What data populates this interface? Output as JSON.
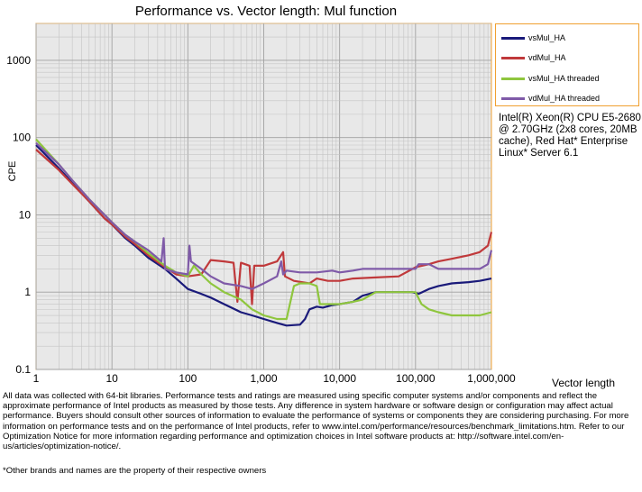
{
  "chart_data": {
    "type": "line",
    "title": "Performance vs. Vector length: Mul function",
    "xlabel": "Vector length",
    "ylabel": "CPE",
    "x_scale": "log",
    "y_scale": "log",
    "xlim": [
      1,
      1000000
    ],
    "ylim": [
      0.1,
      3000
    ],
    "x_ticks": [
      "1",
      "10",
      "100",
      "1,000",
      "10,000",
      "100,000",
      "1,000,000"
    ],
    "y_ticks": [
      "0.1",
      "1",
      "10",
      "100",
      "1000"
    ],
    "grid": true,
    "legend_position": "top-right",
    "annotation": "Intel(R) Xeon(R) CPU E5-2680 @ 2.70GHz (2x8 cores, 20MB cache), Red Hat* Enterprise Linux* Server 6.1",
    "series": [
      {
        "name": "vsMul_HA",
        "color": "#1a1a7a",
        "points": [
          [
            1,
            80
          ],
          [
            2,
            40
          ],
          [
            3,
            26
          ],
          [
            5,
            15
          ],
          [
            8,
            9
          ],
          [
            10,
            7.5
          ],
          [
            15,
            5
          ],
          [
            20,
            4
          ],
          [
            30,
            2.8
          ],
          [
            50,
            2
          ],
          [
            70,
            1.5
          ],
          [
            100,
            1.1
          ],
          [
            150,
            0.95
          ],
          [
            200,
            0.85
          ],
          [
            300,
            0.7
          ],
          [
            500,
            0.55
          ],
          [
            700,
            0.5
          ],
          [
            1000,
            0.45
          ],
          [
            1500,
            0.4
          ],
          [
            2000,
            0.37
          ],
          [
            3000,
            0.38
          ],
          [
            3500,
            0.45
          ],
          [
            4000,
            0.6
          ],
          [
            5000,
            0.65
          ],
          [
            6000,
            0.63
          ],
          [
            8000,
            0.68
          ],
          [
            10000,
            0.7
          ],
          [
            15000,
            0.75
          ],
          [
            20000,
            0.9
          ],
          [
            30000,
            1.0
          ],
          [
            50000,
            1.0
          ],
          [
            90000,
            1.0
          ],
          [
            110000,
            0.95
          ],
          [
            150000,
            1.1
          ],
          [
            200000,
            1.2
          ],
          [
            300000,
            1.3
          ],
          [
            500000,
            1.35
          ],
          [
            700000,
            1.4
          ],
          [
            1000000,
            1.5
          ]
        ]
      },
      {
        "name": "vdMul_HA",
        "color": "#c0393b",
        "points": [
          [
            1,
            70
          ],
          [
            2,
            38
          ],
          [
            3,
            25
          ],
          [
            5,
            15
          ],
          [
            8,
            9
          ],
          [
            10,
            7.5
          ],
          [
            15,
            5.2
          ],
          [
            20,
            4.2
          ],
          [
            30,
            3
          ],
          [
            50,
            2.1
          ],
          [
            70,
            1.7
          ],
          [
            100,
            1.6
          ],
          [
            150,
            1.7
          ],
          [
            200,
            2.6
          ],
          [
            300,
            2.5
          ],
          [
            400,
            2.4
          ],
          [
            450,
            0.75
          ],
          [
            500,
            2.4
          ],
          [
            650,
            2.2
          ],
          [
            700,
            0.7
          ],
          [
            750,
            2.2
          ],
          [
            1000,
            2.2
          ],
          [
            1500,
            2.5
          ],
          [
            1800,
            3.3
          ],
          [
            1900,
            1.6
          ],
          [
            2500,
            1.4
          ],
          [
            4000,
            1.3
          ],
          [
            5000,
            1.5
          ],
          [
            7000,
            1.4
          ],
          [
            10000,
            1.4
          ],
          [
            15000,
            1.5
          ],
          [
            30000,
            1.55
          ],
          [
            60000,
            1.6
          ],
          [
            100000,
            2.1
          ],
          [
            150000,
            2.3
          ],
          [
            200000,
            2.5
          ],
          [
            300000,
            2.7
          ],
          [
            500000,
            3
          ],
          [
            700000,
            3.3
          ],
          [
            900000,
            4
          ],
          [
            1000000,
            6
          ]
        ]
      },
      {
        "name": "vsMul_HA threaded",
        "color": "#8fc63e",
        "points": [
          [
            1,
            95
          ],
          [
            2,
            45
          ],
          [
            3,
            28
          ],
          [
            5,
            16
          ],
          [
            8,
            10
          ],
          [
            10,
            8
          ],
          [
            15,
            5.5
          ],
          [
            20,
            4.5
          ],
          [
            30,
            3.2
          ],
          [
            50,
            2.2
          ],
          [
            70,
            1.8
          ],
          [
            100,
            1.6
          ],
          [
            120,
            2.2
          ],
          [
            150,
            1.7
          ],
          [
            200,
            1.3
          ],
          [
            300,
            1.0
          ],
          [
            500,
            0.8
          ],
          [
            700,
            0.6
          ],
          [
            1000,
            0.5
          ],
          [
            1500,
            0.45
          ],
          [
            2000,
            0.45
          ],
          [
            2500,
            1.2
          ],
          [
            3000,
            1.3
          ],
          [
            4000,
            1.3
          ],
          [
            5000,
            1.2
          ],
          [
            5500,
            0.7
          ],
          [
            7000,
            0.7
          ],
          [
            10000,
            0.7
          ],
          [
            15000,
            0.75
          ],
          [
            20000,
            0.8
          ],
          [
            30000,
            1.0
          ],
          [
            50000,
            1.0
          ],
          [
            100000,
            1.0
          ],
          [
            120000,
            0.7
          ],
          [
            150000,
            0.6
          ],
          [
            200000,
            0.55
          ],
          [
            300000,
            0.5
          ],
          [
            500000,
            0.5
          ],
          [
            700000,
            0.5
          ],
          [
            1000000,
            0.55
          ]
        ]
      },
      {
        "name": "vdMul_HA threaded",
        "color": "#7f5aa8",
        "points": [
          [
            1,
            85
          ],
          [
            2,
            45
          ],
          [
            3,
            28
          ],
          [
            5,
            16
          ],
          [
            8,
            10
          ],
          [
            10,
            8
          ],
          [
            15,
            5.5
          ],
          [
            20,
            4.5
          ],
          [
            30,
            3.5
          ],
          [
            45,
            2.5
          ],
          [
            48,
            5
          ],
          [
            50,
            2
          ],
          [
            70,
            1.8
          ],
          [
            100,
            1.7
          ],
          [
            105,
            4
          ],
          [
            110,
            2.5
          ],
          [
            150,
            2
          ],
          [
            200,
            1.6
          ],
          [
            300,
            1.3
          ],
          [
            500,
            1.2
          ],
          [
            700,
            1.1
          ],
          [
            1000,
            1.3
          ],
          [
            1500,
            1.6
          ],
          [
            1700,
            2.5
          ],
          [
            1800,
            1.7
          ],
          [
            2000,
            1.9
          ],
          [
            3000,
            1.8
          ],
          [
            5000,
            1.8
          ],
          [
            8000,
            1.9
          ],
          [
            10000,
            1.8
          ],
          [
            15000,
            1.9
          ],
          [
            20000,
            2.0
          ],
          [
            30000,
            2.0
          ],
          [
            50000,
            2.0
          ],
          [
            100000,
            2.0
          ],
          [
            110000,
            2.3
          ],
          [
            150000,
            2.3
          ],
          [
            200000,
            2.0
          ],
          [
            300000,
            2.0
          ],
          [
            500000,
            2.0
          ],
          [
            700000,
            2.0
          ],
          [
            900000,
            2.3
          ],
          [
            1000000,
            3.5
          ]
        ]
      }
    ]
  },
  "texts": {
    "title": "Performance vs. Vector length: Mul function",
    "ylabel": "CPE",
    "xlabel": "Vector length",
    "annotation": "Intel(R) Xeon(R) CPU E5-2680 @ 2.70GHz (2x8 cores, 20MB cache), Red Hat* Enterprise Linux* Server 6.1",
    "disclaimer": "All data was collected with 64-bit libraries. Performance tests and ratings are measured using specific computer systems and/or components and reflect the approximate performance of Intel products as measured by those tests. Any difference in system hardware or software design or configuration may affect actual performance. Buyers should consult other sources of information to evaluate the performance of systems or components they are considering purchasing. For more information on performance tests and on the performance of Intel products, refer to www.intel.com/performance/resources/benchmark_limitations.htm. Refer to our Optimization Notice for more information regarding performance and optimization choices in Intel software products at: http://software.intel.com/en-us/articles/optimization-notice/.",
    "footnote": "*Other brands and names are the property of their respective owners"
  }
}
